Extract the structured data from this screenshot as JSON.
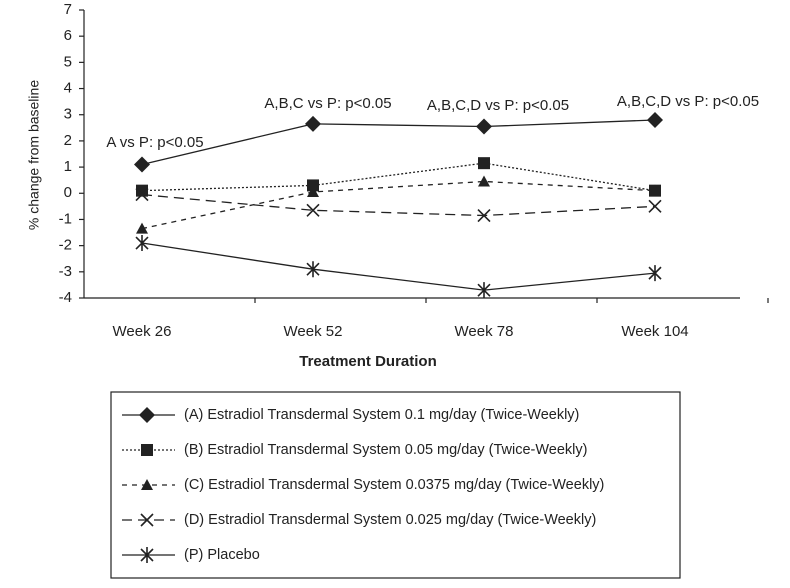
{
  "chart_data": {
    "type": "line",
    "x_label": "Treatment Duration",
    "y_label": "% change from baseline",
    "categories": [
      "Week 26",
      "Week 52",
      "Week 78",
      "Week 104"
    ],
    "annotations": [
      "A vs P: p<0.05",
      "A,B,C vs P: p<0.05",
      "A,B,C,D vs P: p<0.05",
      "A,B,C,D vs P: p<0.05"
    ],
    "ylim": [
      -4,
      7
    ],
    "yticks": [
      -4,
      -3,
      -2,
      -1,
      0,
      1,
      2,
      3,
      4,
      5,
      6,
      7
    ],
    "series": [
      {
        "name": "(A) Estradiol Transdermal System 0.1 mg/day (Twice-Weekly)",
        "color": "#222222",
        "marker": "diamond",
        "dash": "solid",
        "values": [
          1.1,
          2.65,
          2.55,
          2.8
        ]
      },
      {
        "name": "(B) Estradiol Transdermal System 0.05 mg/day (Twice-Weekly)",
        "color": "#222222",
        "marker": "square",
        "dash": "dotted",
        "values": [
          0.1,
          0.3,
          1.15,
          0.1
        ]
      },
      {
        "name": "(C) Estradiol Transdermal System 0.0375 mg/day (Twice-Weekly)",
        "color": "#222222",
        "marker": "triangle",
        "dash": "dashed",
        "values": [
          -1.35,
          0.05,
          0.45,
          0.1
        ]
      },
      {
        "name": "(D) Estradiol Transdermal System 0.025 mg/day (Twice-Weekly)",
        "color": "#222222",
        "marker": "x",
        "dash": "longdash",
        "values": [
          -0.05,
          -0.65,
          -0.85,
          -0.5
        ]
      },
      {
        "name": "(P) Placebo",
        "color": "#222222",
        "marker": "asterisk",
        "dash": "solid",
        "values": [
          -1.9,
          -2.9,
          -3.7,
          -3.05
        ]
      }
    ]
  }
}
